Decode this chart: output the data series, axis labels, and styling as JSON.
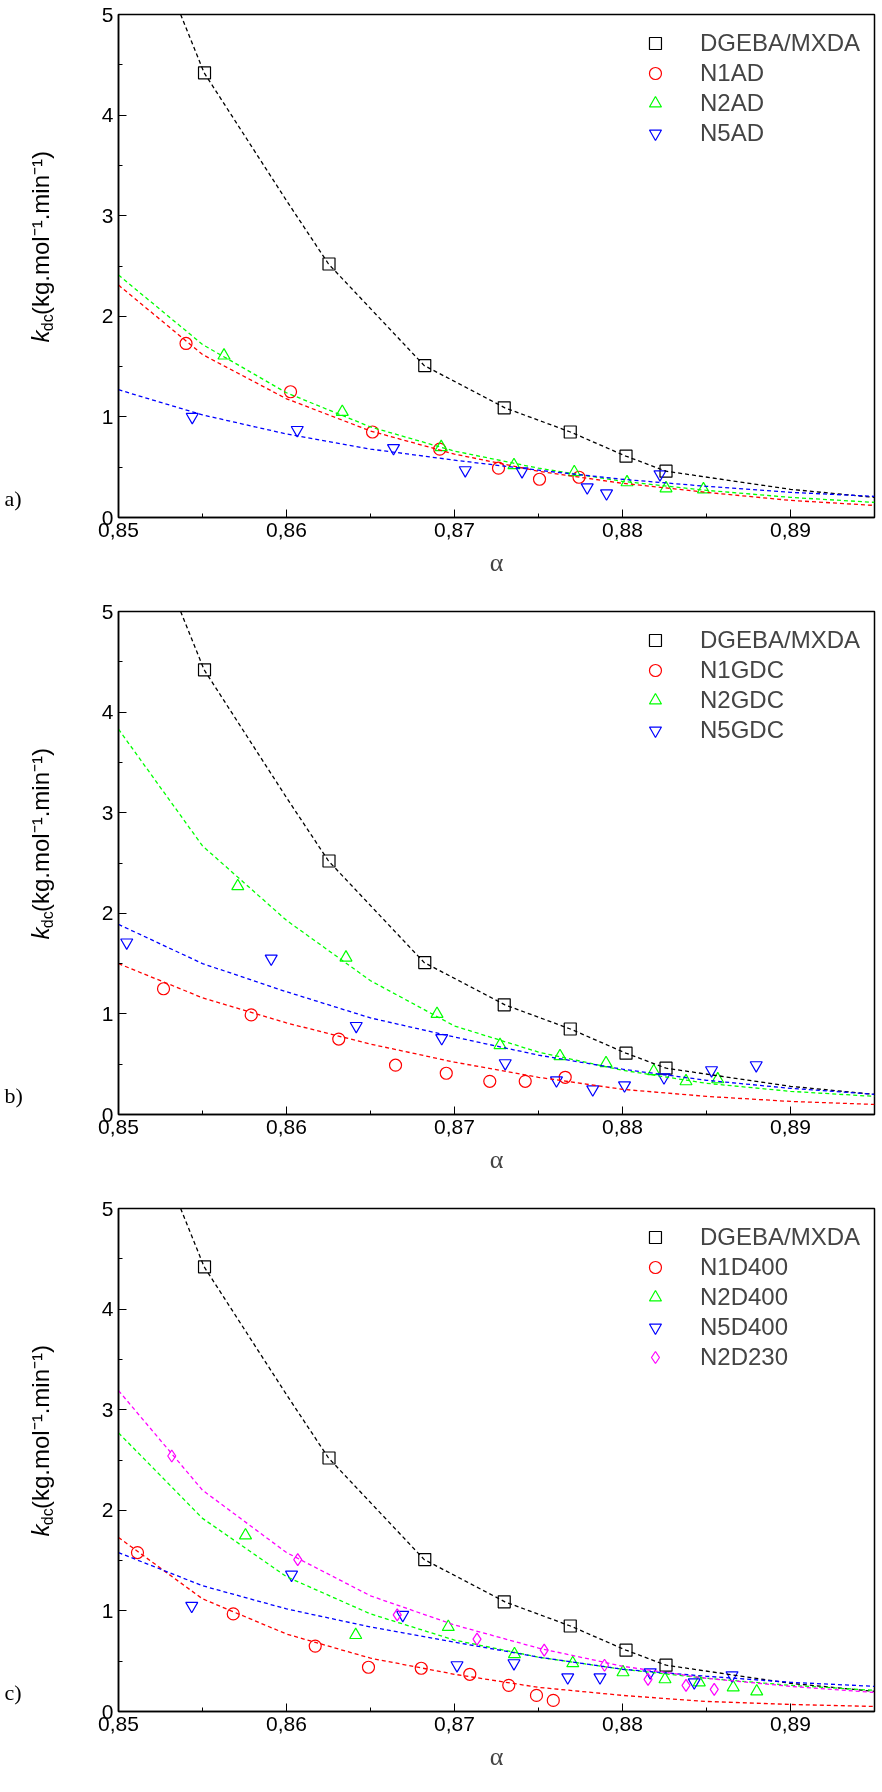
{
  "chart_data": [
    {
      "type": "scatter",
      "xlabel": "α",
      "ylabel": "k$_{dc}$(kg.mol⁻¹.min⁻¹)",
      "annotations": [
        "a)"
      ],
      "xlim": [
        0.85,
        0.895
      ],
      "ylim": [
        0,
        5
      ],
      "xticks": [
        {
          "value": 0.85,
          "label": "0,85"
        },
        {
          "value": 0.86,
          "label": "0,86"
        },
        {
          "value": 0.87,
          "label": "0,87"
        },
        {
          "value": 0.88,
          "label": "0,88"
        },
        {
          "value": 0.89,
          "label": "0,89"
        }
      ],
      "yticks": [
        0,
        1,
        2,
        3,
        4,
        5
      ],
      "grid": false,
      "legend": "top right",
      "series": [
        {
          "name": "DGEBA/MXDA",
          "color": "#000000",
          "marker": "square",
          "x": [
            0.85512,
            0.86253,
            0.86823,
            0.87296,
            0.87689,
            0.88021,
            0.88259
          ],
          "values": [
            4.42,
            2.52,
            1.51,
            1.09,
            0.85,
            0.61,
            0.46
          ]
        },
        {
          "name": "N1AD",
          "color": "#ff0000",
          "marker": "circle",
          "x": [
            0.85402,
            0.86024,
            0.86512,
            0.86912,
            0.87262,
            0.87506,
            0.87741
          ],
          "values": [
            1.73,
            1.25,
            0.85,
            0.68,
            0.49,
            0.38,
            0.4
          ]
        },
        {
          "name": "N2AD",
          "color": "#00ff00",
          "marker": "triangle",
          "x": [
            0.85628,
            0.86332,
            0.86921,
            0.87354,
            0.87713,
            0.88027,
            0.88259,
            0.88482
          ],
          "values": [
            1.61,
            1.05,
            0.7,
            0.52,
            0.45,
            0.35,
            0.29,
            0.28
          ]
        },
        {
          "name": "N5AD",
          "color": "#0000ff",
          "marker": "triangle_down",
          "x": [
            0.85439,
            0.86064,
            0.86637,
            0.87064,
            0.87402,
            0.8779,
            0.87905,
            0.88223
          ],
          "values": [
            1.0,
            0.87,
            0.69,
            0.47,
            0.46,
            0.3,
            0.24,
            0.43
          ]
        },
        {
          "type": "line",
          "color": "#000000",
          "line_style": "dashed",
          "x": [
            0.8537,
            0.8551,
            0.86,
            0.8625,
            0.8682,
            0.873,
            0.8769,
            0.8802,
            0.8826,
            0.89,
            0.895
          ],
          "values": [
            5.0,
            4.42,
            3.15,
            2.52,
            1.51,
            1.09,
            0.85,
            0.61,
            0.46,
            0.28,
            0.2
          ]
        },
        {
          "type": "line",
          "color": "#ff0000",
          "line_style": "dashed",
          "x": [
            0.85,
            0.855,
            0.86,
            0.865,
            0.87,
            0.875,
            0.88,
            0.885,
            0.89,
            0.895
          ],
          "values": [
            2.31,
            1.62,
            1.18,
            0.86,
            0.63,
            0.46,
            0.34,
            0.25,
            0.17,
            0.12
          ]
        },
        {
          "type": "line",
          "color": "#00ff00",
          "line_style": "dashed",
          "x": [
            0.85,
            0.855,
            0.86,
            0.865,
            0.87,
            0.875,
            0.88,
            0.885,
            0.89,
            0.895
          ],
          "values": [
            2.41,
            1.72,
            1.24,
            0.9,
            0.66,
            0.49,
            0.36,
            0.27,
            0.2,
            0.15
          ]
        },
        {
          "type": "line",
          "color": "#0000ff",
          "line_style": "dashed",
          "x": [
            0.85,
            0.855,
            0.86,
            0.865,
            0.87,
            0.875,
            0.88,
            0.885,
            0.89,
            0.895
          ],
          "values": [
            1.27,
            1.02,
            0.83,
            0.68,
            0.57,
            0.47,
            0.38,
            0.31,
            0.25,
            0.21
          ]
        }
      ]
    },
    {
      "type": "scatter",
      "xlabel": "α",
      "ylabel": "k$_{dc}$(kg.mol⁻¹.min⁻¹)",
      "annotations": [
        "b)"
      ],
      "xlim": [
        0.85,
        0.895
      ],
      "ylim": [
        0,
        5
      ],
      "xticks": [
        {
          "value": 0.85,
          "label": "0,85"
        },
        {
          "value": 0.86,
          "label": "0,86"
        },
        {
          "value": 0.87,
          "label": "0,87"
        },
        {
          "value": 0.88,
          "label": "0,88"
        },
        {
          "value": 0.89,
          "label": "0,89"
        }
      ],
      "yticks": [
        0,
        1,
        2,
        3,
        4,
        5
      ],
      "grid": false,
      "legend": "top right",
      "series": [
        {
          "name": "DGEBA/MXDA",
          "color": "#000000",
          "marker": "square",
          "x": [
            0.85512,
            0.86253,
            0.86823,
            0.87296,
            0.87689,
            0.88021,
            0.88259
          ],
          "values": [
            4.42,
            2.52,
            1.51,
            1.09,
            0.85,
            0.61,
            0.46
          ]
        },
        {
          "name": "N1GDC",
          "color": "#ff0000",
          "marker": "circle",
          "x": [
            0.85268,
            0.8579,
            0.86311,
            0.86649,
            0.86951,
            0.8721,
            0.87421,
            0.87659
          ],
          "values": [
            1.25,
            0.99,
            0.75,
            0.49,
            0.41,
            0.33,
            0.33,
            0.37
          ]
        },
        {
          "name": "N2GDC",
          "color": "#00ff00",
          "marker": "triangle",
          "x": [
            0.8571,
            0.86354,
            0.86896,
            0.87271,
            0.87628,
            0.87902,
            0.88186,
            0.88378,
            0.88567
          ],
          "values": [
            2.27,
            1.56,
            1.0,
            0.69,
            0.58,
            0.51,
            0.43,
            0.33,
            0.35
          ]
        },
        {
          "name": "N5GDC",
          "color": "#0000ff",
          "marker": "triangle_down",
          "x": [
            0.85049,
            0.85909,
            0.86415,
            0.86924,
            0.87302,
            0.87607,
            0.87823,
            0.88012,
            0.88247,
            0.8853,
            0.88796
          ],
          "values": [
            1.71,
            1.55,
            0.88,
            0.76,
            0.51,
            0.34,
            0.25,
            0.29,
            0.37,
            0.44,
            0.49
          ]
        },
        {
          "type": "line",
          "color": "#000000",
          "line_style": "dashed",
          "x": [
            0.8537,
            0.8551,
            0.86,
            0.8625,
            0.8682,
            0.873,
            0.8769,
            0.8802,
            0.8826,
            0.89,
            0.895
          ],
          "values": [
            5.0,
            4.42,
            3.15,
            2.52,
            1.51,
            1.09,
            0.85,
            0.61,
            0.46,
            0.28,
            0.2
          ]
        },
        {
          "type": "line",
          "color": "#ff0000",
          "line_style": "dashed",
          "x": [
            0.85,
            0.855,
            0.86,
            0.865,
            0.87,
            0.875,
            0.88,
            0.885,
            0.89,
            0.895
          ],
          "values": [
            1.5,
            1.16,
            0.91,
            0.7,
            0.52,
            0.37,
            0.25,
            0.18,
            0.13,
            0.1
          ]
        },
        {
          "type": "line",
          "color": "#00ff00",
          "line_style": "dashed",
          "x": [
            0.85,
            0.855,
            0.86,
            0.865,
            0.87,
            0.875,
            0.88,
            0.885,
            0.89,
            0.895
          ],
          "values": [
            3.83,
            2.67,
            1.93,
            1.33,
            0.88,
            0.62,
            0.44,
            0.31,
            0.23,
            0.18
          ]
        },
        {
          "type": "line",
          "color": "#0000ff",
          "line_style": "dashed",
          "x": [
            0.85,
            0.855,
            0.86,
            0.865,
            0.87,
            0.875,
            0.88,
            0.885,
            0.89,
            0.895
          ],
          "values": [
            1.89,
            1.5,
            1.22,
            0.96,
            0.77,
            0.59,
            0.45,
            0.34,
            0.26,
            0.2
          ]
        }
      ]
    },
    {
      "type": "scatter",
      "xlabel": "α",
      "ylabel": "k$_{dc}$(kg.mol⁻¹.min⁻¹)",
      "annotations": [
        "c)"
      ],
      "xlim": [
        0.85,
        0.895
      ],
      "ylim": [
        0,
        5
      ],
      "xticks": [
        {
          "value": 0.85,
          "label": "0,85"
        },
        {
          "value": 0.86,
          "label": "0,86"
        },
        {
          "value": 0.87,
          "label": "0,87"
        },
        {
          "value": 0.88,
          "label": "0,88"
        },
        {
          "value": 0.89,
          "label": "0,89"
        }
      ],
      "yticks": [
        0,
        1,
        2,
        3,
        4,
        5
      ],
      "grid": false,
      "legend": "top right",
      "series": [
        {
          "name": "DGEBA/MXDA",
          "color": "#000000",
          "marker": "square",
          "x": [
            0.85512,
            0.86253,
            0.86823,
            0.87296,
            0.87689,
            0.88021,
            0.88259
          ],
          "values": [
            4.42,
            2.52,
            1.51,
            1.09,
            0.85,
            0.61,
            0.46
          ]
        },
        {
          "name": "N1D400",
          "color": "#ff0000",
          "marker": "circle",
          "x": [
            0.85113,
            0.85683,
            0.86171,
            0.86488,
            0.86802,
            0.87091,
            0.87323,
            0.87488,
            0.87588
          ],
          "values": [
            1.58,
            0.97,
            0.65,
            0.44,
            0.43,
            0.37,
            0.26,
            0.16,
            0.11
          ]
        },
        {
          "name": "N2D400",
          "color": "#00ff00",
          "marker": "triangle",
          "x": [
            0.85756,
            0.86412,
            0.86963,
            0.87357,
            0.87704,
            0.88003,
            0.88253,
            0.88457,
            0.88659,
            0.88799
          ],
          "values": [
            1.75,
            0.76,
            0.84,
            0.57,
            0.48,
            0.39,
            0.32,
            0.29,
            0.24,
            0.2
          ]
        },
        {
          "name": "N5D400",
          "color": "#0000ff",
          "marker": "triangle_down",
          "x": [
            0.85436,
            0.8603,
            0.86692,
            0.87015,
            0.87354,
            0.87674,
            0.87866,
            0.88165,
            0.88427,
            0.88652
          ],
          "values": [
            1.05,
            1.36,
            0.96,
            0.46,
            0.48,
            0.34,
            0.34,
            0.39,
            0.29,
            0.36
          ]
        },
        {
          "name": "N2D230",
          "color": "#ff00ff",
          "marker": "diamond",
          "x": [
            0.85317,
            0.86067,
            0.86659,
            0.87134,
            0.87534,
            0.87893,
            0.88152,
            0.88378,
            0.88546
          ],
          "values": [
            2.54,
            1.51,
            0.96,
            0.72,
            0.61,
            0.46,
            0.32,
            0.26,
            0.22
          ]
        },
        {
          "type": "line",
          "color": "#000000",
          "line_style": "dashed",
          "x": [
            0.8537,
            0.8551,
            0.86,
            0.8625,
            0.8682,
            0.873,
            0.8769,
            0.8802,
            0.8826,
            0.89,
            0.895
          ],
          "values": [
            5.0,
            4.42,
            3.15,
            2.52,
            1.51,
            1.09,
            0.85,
            0.61,
            0.46,
            0.28,
            0.2
          ]
        },
        {
          "type": "line",
          "color": "#ff0000",
          "line_style": "dashed",
          "x": [
            0.85,
            0.855,
            0.86,
            0.865,
            0.87,
            0.875,
            0.88,
            0.885,
            0.89,
            0.895
          ],
          "values": [
            1.73,
            1.12,
            0.77,
            0.53,
            0.37,
            0.24,
            0.16,
            0.1,
            0.07,
            0.05
          ]
        },
        {
          "type": "line",
          "color": "#00ff00",
          "line_style": "dashed",
          "x": [
            0.85,
            0.855,
            0.86,
            0.865,
            0.87,
            0.875,
            0.88,
            0.885,
            0.89,
            0.895
          ],
          "values": [
            2.77,
            1.92,
            1.34,
            0.97,
            0.71,
            0.54,
            0.42,
            0.33,
            0.26,
            0.21
          ]
        },
        {
          "type": "line",
          "color": "#0000ff",
          "line_style": "dashed",
          "x": [
            0.85,
            0.855,
            0.86,
            0.865,
            0.87,
            0.875,
            0.88,
            0.885,
            0.89,
            0.895
          ],
          "values": [
            1.58,
            1.25,
            1.02,
            0.84,
            0.69,
            0.54,
            0.42,
            0.35,
            0.29,
            0.25
          ]
        },
        {
          "type": "line",
          "color": "#ff00ff",
          "line_style": "dashed",
          "x": [
            0.85,
            0.855,
            0.86,
            0.865,
            0.87,
            0.875,
            0.88,
            0.885,
            0.89,
            0.895
          ],
          "values": [
            3.19,
            2.2,
            1.58,
            1.15,
            0.86,
            0.63,
            0.45,
            0.33,
            0.25,
            0.19
          ]
        }
      ]
    }
  ]
}
